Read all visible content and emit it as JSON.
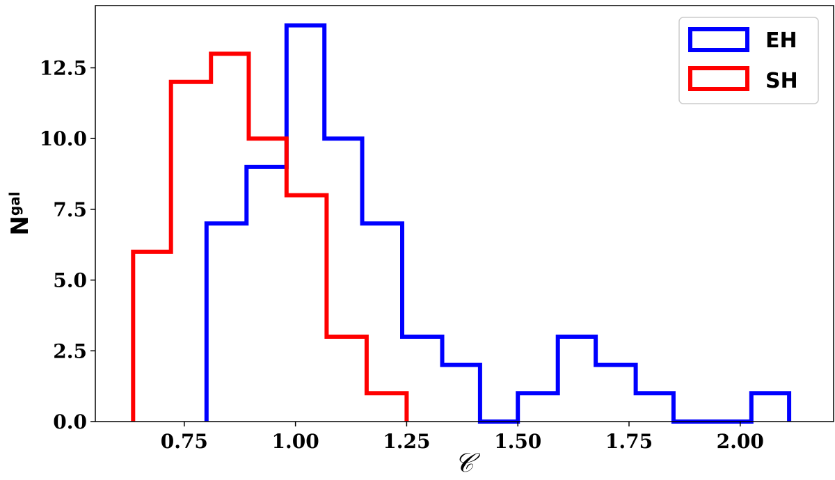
{
  "chart_data": {
    "type": "histogram",
    "xlabel": "𝒞",
    "ylabel": "N",
    "ylabel_subscript": "gal",
    "xlim": [
      0.55,
      2.21
    ],
    "ylim": [
      0,
      14.7
    ],
    "xticks": [
      0.75,
      1.0,
      1.25,
      1.5,
      1.75,
      2.0
    ],
    "xtick_labels": [
      "0.75",
      "1.00",
      "1.25",
      "1.50",
      "1.75",
      "2.00"
    ],
    "yticks": [
      0.0,
      2.5,
      5.0,
      7.5,
      10.0,
      12.5
    ],
    "ytick_labels": [
      "0.0",
      "2.5",
      "5.0",
      "7.5",
      "10.0",
      "12.5"
    ],
    "grid": false,
    "legend_position": "top-right",
    "series": [
      {
        "name": "EH",
        "color": "#0000ff",
        "bin_edges": [
          0.8,
          0.89,
          0.98,
          1.065,
          1.15,
          1.24,
          1.33,
          1.415,
          1.5,
          1.59,
          1.675,
          1.765,
          1.85,
          1.94,
          2.025,
          2.11
        ],
        "counts": [
          7,
          9,
          14,
          10,
          7,
          3,
          2,
          0,
          1,
          3,
          2,
          1,
          0,
          0,
          1
        ]
      },
      {
        "name": "SH",
        "color": "#ff0000",
        "bin_edges": [
          0.635,
          0.72,
          0.81,
          0.895,
          0.98,
          1.07,
          1.16,
          1.25
        ],
        "counts": [
          6,
          12,
          13,
          10,
          8,
          3,
          1
        ]
      }
    ]
  }
}
